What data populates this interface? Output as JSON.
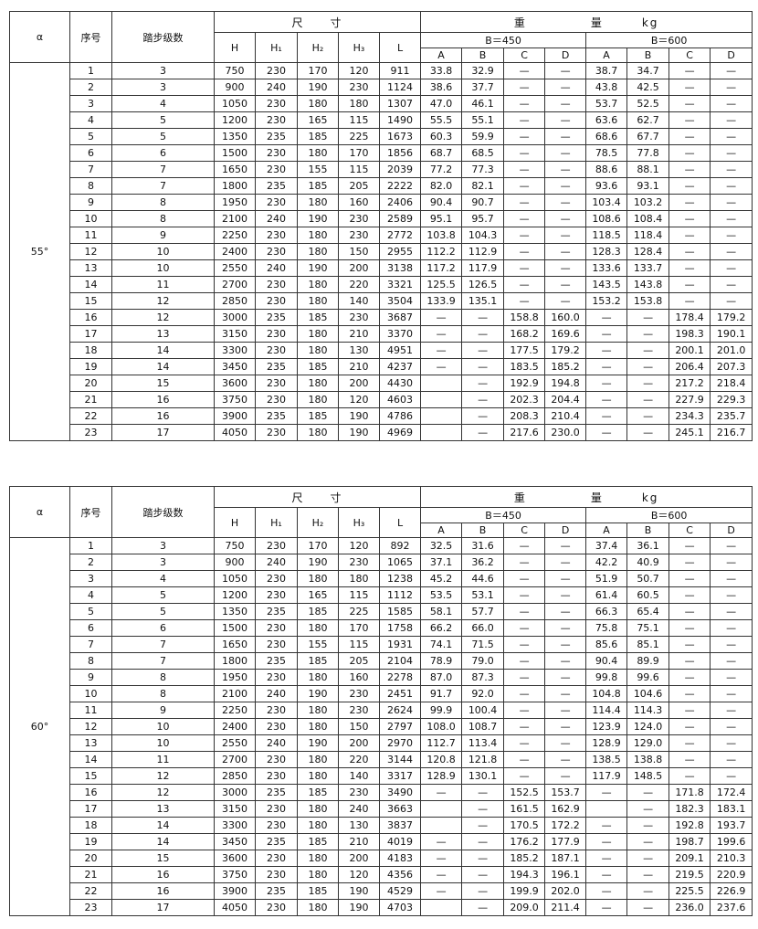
{
  "header": {
    "alpha": "α",
    "seq": "序号",
    "steps": "踏步级数",
    "dims": "尺　　寸",
    "weight": "重　　　　　量　　　kg",
    "b450": "B＝450",
    "b600": "B＝600",
    "dim_cols": [
      "H",
      "H₁",
      "H₂",
      "H₃",
      "L"
    ],
    "weight_cols": [
      "A",
      "B",
      "C",
      "D",
      "A",
      "B",
      "C",
      "D"
    ]
  },
  "tables": [
    {
      "angle": "55°",
      "rows": [
        [
          "1",
          "3",
          "750",
          "230",
          "170",
          "120",
          "911",
          "33.8",
          "32.9",
          "—",
          "—",
          "38.7",
          "34.7",
          "—",
          "—"
        ],
        [
          "2",
          "3",
          "900",
          "240",
          "190",
          "230",
          "1124",
          "38.6",
          "37.7",
          "—",
          "—",
          "43.8",
          "42.5",
          "—",
          "—"
        ],
        [
          "3",
          "4",
          "1050",
          "230",
          "180",
          "180",
          "1307",
          "47.0",
          "46.1",
          "—",
          "—",
          "53.7",
          "52.5",
          "—",
          "—"
        ],
        [
          "4",
          "5",
          "1200",
          "230",
          "165",
          "115",
          "1490",
          "55.5",
          "55.1",
          "—",
          "—",
          "63.6",
          "62.7",
          "—",
          "—"
        ],
        [
          "5",
          "5",
          "1350",
          "235",
          "185",
          "225",
          "1673",
          "60.3",
          "59.9",
          "—",
          "—",
          "68.6",
          "67.7",
          "—",
          "—"
        ],
        [
          "6",
          "6",
          "1500",
          "230",
          "180",
          "170",
          "1856",
          "68.7",
          "68.5",
          "—",
          "—",
          "78.5",
          "77.8",
          "—",
          "—"
        ],
        [
          "7",
          "7",
          "1650",
          "230",
          "155",
          "115",
          "2039",
          "77.2",
          "77.3",
          "—",
          "—",
          "88.6",
          "88.1",
          "—",
          "—"
        ],
        [
          "8",
          "7",
          "1800",
          "235",
          "185",
          "205",
          "2222",
          "82.0",
          "82.1",
          "—",
          "—",
          "93.6",
          "93.1",
          "—",
          "—"
        ],
        [
          "9",
          "8",
          "1950",
          "230",
          "180",
          "160",
          "2406",
          "90.4",
          "90.7",
          "—",
          "—",
          "103.4",
          "103.2",
          "—",
          "—"
        ],
        [
          "10",
          "8",
          "2100",
          "240",
          "190",
          "230",
          "2589",
          "95.1",
          "95.7",
          "—",
          "—",
          "108.6",
          "108.4",
          "—",
          "—"
        ],
        [
          "11",
          "9",
          "2250",
          "230",
          "180",
          "230",
          "2772",
          "103.8",
          "104.3",
          "—",
          "—",
          "118.5",
          "118.4",
          "—",
          "—"
        ],
        [
          "12",
          "10",
          "2400",
          "230",
          "180",
          "150",
          "2955",
          "112.2",
          "112.9",
          "—",
          "—",
          "128.3",
          "128.4",
          "—",
          "—"
        ],
        [
          "13",
          "10",
          "2550",
          "240",
          "190",
          "200",
          "3138",
          "117.2",
          "117.9",
          "—",
          "—",
          "133.6",
          "133.7",
          "—",
          "—"
        ],
        [
          "14",
          "11",
          "2700",
          "230",
          "180",
          "220",
          "3321",
          "125.5",
          "126.5",
          "—",
          "—",
          "143.5",
          "143.8",
          "—",
          "—"
        ],
        [
          "15",
          "12",
          "2850",
          "230",
          "180",
          "140",
          "3504",
          "133.9",
          "135.1",
          "—",
          "—",
          "153.2",
          "153.8",
          "—",
          "—"
        ],
        [
          "16",
          "12",
          "3000",
          "235",
          "185",
          "230",
          "3687",
          "—",
          "—",
          "158.8",
          "160.0",
          "—",
          "—",
          "178.4",
          "179.2"
        ],
        [
          "17",
          "13",
          "3150",
          "230",
          "180",
          "210",
          "3370",
          "—",
          "—",
          "168.2",
          "169.6",
          "—",
          "—",
          "198.3",
          "190.1"
        ],
        [
          "18",
          "14",
          "3300",
          "230",
          "180",
          "130",
          "4951",
          "—",
          "—",
          "177.5",
          "179.2",
          "—",
          "—",
          "200.1",
          "201.0"
        ],
        [
          "19",
          "14",
          "3450",
          "235",
          "185",
          "210",
          "4237",
          "—",
          "—",
          "183.5",
          "185.2",
          "—",
          "—",
          "206.4",
          "207.3"
        ],
        [
          "20",
          "15",
          "3600",
          "230",
          "180",
          "200",
          "4430",
          "",
          "—",
          "192.9",
          "194.8",
          "—",
          "—",
          "217.2",
          "218.4"
        ],
        [
          "21",
          "16",
          "3750",
          "230",
          "180",
          "120",
          "4603",
          "",
          "—",
          "202.3",
          "204.4",
          "—",
          "—",
          "227.9",
          "229.3"
        ],
        [
          "22",
          "16",
          "3900",
          "235",
          "185",
          "190",
          "4786",
          "",
          "—",
          "208.3",
          "210.4",
          "—",
          "—",
          "234.3",
          "235.7"
        ],
        [
          "23",
          "17",
          "4050",
          "230",
          "180",
          "190",
          "4969",
          "",
          "—",
          "217.6",
          "230.0",
          "—",
          "—",
          "245.1",
          "216.7"
        ]
      ]
    },
    {
      "angle": "60°",
      "rows": [
        [
          "1",
          "3",
          "750",
          "230",
          "170",
          "120",
          "892",
          "32.5",
          "31.6",
          "—",
          "—",
          "37.4",
          "36.1",
          "—",
          "—"
        ],
        [
          "2",
          "3",
          "900",
          "240",
          "190",
          "230",
          "1065",
          "37.1",
          "36.2",
          "—",
          "—",
          "42.2",
          "40.9",
          "—",
          "—"
        ],
        [
          "3",
          "4",
          "1050",
          "230",
          "180",
          "180",
          "1238",
          "45.2",
          "44.6",
          "—",
          "—",
          "51.9",
          "50.7",
          "—",
          "—"
        ],
        [
          "4",
          "5",
          "1200",
          "230",
          "165",
          "115",
          "1112",
          "53.5",
          "53.1",
          "—",
          "—",
          "61.4",
          "60.5",
          "—",
          "—"
        ],
        [
          "5",
          "5",
          "1350",
          "235",
          "185",
          "225",
          "1585",
          "58.1",
          "57.7",
          "—",
          "—",
          "66.3",
          "65.4",
          "—",
          "—"
        ],
        [
          "6",
          "6",
          "1500",
          "230",
          "180",
          "170",
          "1758",
          "66.2",
          "66.0",
          "—",
          "—",
          "75.8",
          "75.1",
          "—",
          "—"
        ],
        [
          "7",
          "7",
          "1650",
          "230",
          "155",
          "115",
          "1931",
          "74.1",
          "71.5",
          "—",
          "—",
          "85.6",
          "85.1",
          "—",
          "—"
        ],
        [
          "8",
          "7",
          "1800",
          "235",
          "185",
          "205",
          "2104",
          "78.9",
          "79.0",
          "—",
          "—",
          "90.4",
          "89.9",
          "—",
          "—"
        ],
        [
          "9",
          "8",
          "1950",
          "230",
          "180",
          "160",
          "2278",
          "87.0",
          "87.3",
          "—",
          "—",
          "99.8",
          "99.6",
          "—",
          "—"
        ],
        [
          "10",
          "8",
          "2100",
          "240",
          "190",
          "230",
          "2451",
          "91.7",
          "92.0",
          "—",
          "—",
          "104.8",
          "104.6",
          "—",
          "—"
        ],
        [
          "11",
          "9",
          "2250",
          "230",
          "180",
          "230",
          "2624",
          "99.9",
          "100.4",
          "—",
          "—",
          "114.4",
          "114.3",
          "—",
          "—"
        ],
        [
          "12",
          "10",
          "2400",
          "230",
          "180",
          "150",
          "2797",
          "108.0",
          "108.7",
          "—",
          "—",
          "123.9",
          "124.0",
          "—",
          "—"
        ],
        [
          "13",
          "10",
          "2550",
          "240",
          "190",
          "200",
          "2970",
          "112.7",
          "113.4",
          "—",
          "—",
          "128.9",
          "129.0",
          "—",
          "—"
        ],
        [
          "14",
          "11",
          "2700",
          "230",
          "180",
          "220",
          "3144",
          "120.8",
          "121.8",
          "—",
          "—",
          "138.5",
          "138.8",
          "—",
          "—"
        ],
        [
          "15",
          "12",
          "2850",
          "230",
          "180",
          "140",
          "3317",
          "128.9",
          "130.1",
          "—",
          "—",
          "117.9",
          "148.5",
          "—",
          "—"
        ],
        [
          "16",
          "12",
          "3000",
          "235",
          "185",
          "230",
          "3490",
          "—",
          "—",
          "152.5",
          "153.7",
          "—",
          "—",
          "171.8",
          "172.4"
        ],
        [
          "17",
          "13",
          "3150",
          "230",
          "180",
          "240",
          "3663",
          "",
          "—",
          "161.5",
          "162.9",
          "",
          "—",
          "182.3",
          "183.1"
        ],
        [
          "18",
          "14",
          "3300",
          "230",
          "180",
          "130",
          "3837",
          "",
          "—",
          "170.5",
          "172.2",
          "—",
          "—",
          "192.8",
          "193.7"
        ],
        [
          "19",
          "14",
          "3450",
          "235",
          "185",
          "210",
          "4019",
          "—",
          "—",
          "176.2",
          "177.9",
          "—",
          "—",
          "198.7",
          "199.6"
        ],
        [
          "20",
          "15",
          "3600",
          "230",
          "180",
          "200",
          "4183",
          "—",
          "—",
          "185.2",
          "187.1",
          "—",
          "—",
          "209.1",
          "210.3"
        ],
        [
          "21",
          "16",
          "3750",
          "230",
          "180",
          "120",
          "4356",
          "—",
          "—",
          "194.3",
          "196.1",
          "—",
          "—",
          "219.5",
          "220.9"
        ],
        [
          "22",
          "16",
          "3900",
          "235",
          "185",
          "190",
          "4529",
          "—",
          "—",
          "199.9",
          "202.0",
          "—",
          "—",
          "225.5",
          "226.9"
        ],
        [
          "23",
          "17",
          "4050",
          "230",
          "180",
          "190",
          "4703",
          "",
          "—",
          "209.0",
          "211.4",
          "—",
          "—",
          "236.0",
          "237.6"
        ]
      ]
    }
  ]
}
